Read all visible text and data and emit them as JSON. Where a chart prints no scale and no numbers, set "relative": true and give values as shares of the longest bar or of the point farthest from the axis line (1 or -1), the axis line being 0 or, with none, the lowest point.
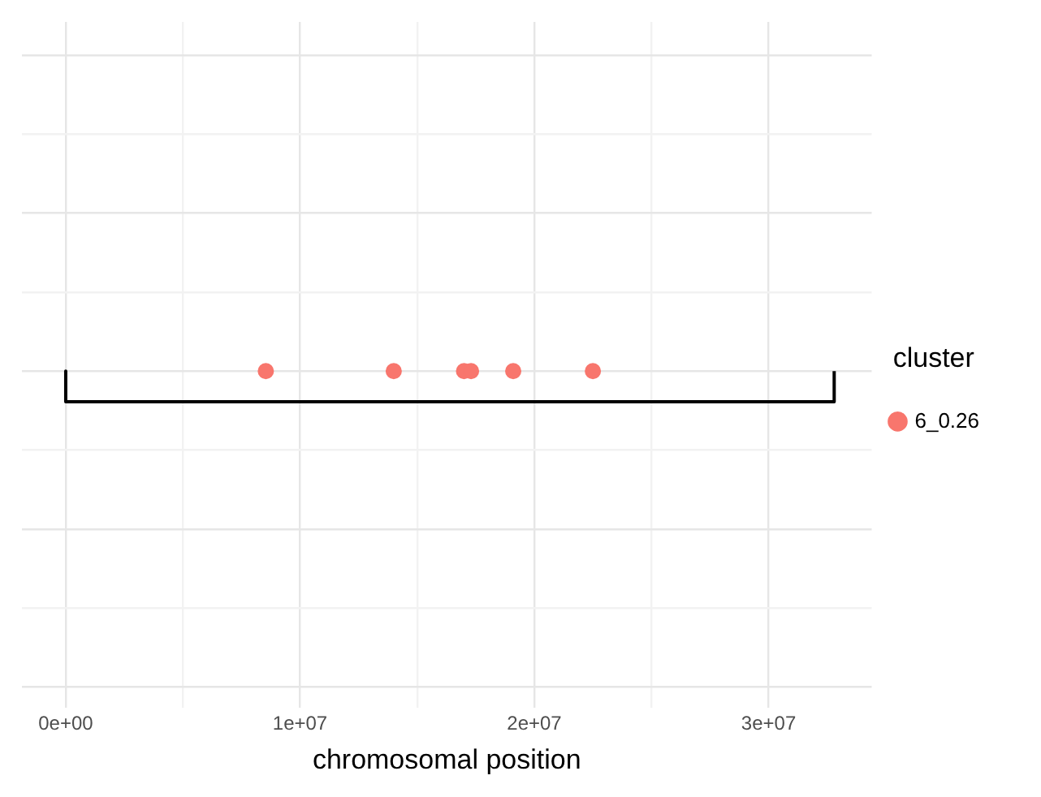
{
  "chart_data": {
    "type": "scatter",
    "xlabel": "chromosomal position",
    "legend_title": "cluster",
    "legend": "right",
    "grid": true,
    "relative": true,
    "tick_labels": "x",
    "xlim": [
      -1870000,
      34400000
    ],
    "xticks": [
      {
        "value": 0,
        "label": "0e+00"
      },
      {
        "value": 5000000,
        "label": null
      },
      {
        "value": 10000000,
        "label": "1e+07"
      },
      {
        "value": 15000000,
        "label": null
      },
      {
        "value": 20000000,
        "label": "2e+07"
      },
      {
        "value": 25000000,
        "label": null
      },
      {
        "value": 30000000,
        "label": "3e+07"
      }
    ],
    "series": [
      {
        "name": "6_0.26",
        "color": "#f8766d",
        "marker": "circle",
        "x": [
          8540000,
          14000000,
          17000000,
          17300000,
          19100000,
          22500000
        ],
        "values": [
          1,
          1,
          1,
          1,
          1,
          1
        ]
      },
      {
        "type": "line",
        "color": "#000000",
        "x": [
          0,
          0,
          32800000,
          32800000
        ],
        "values": [
          1,
          0,
          0,
          1
        ]
      }
    ]
  }
}
